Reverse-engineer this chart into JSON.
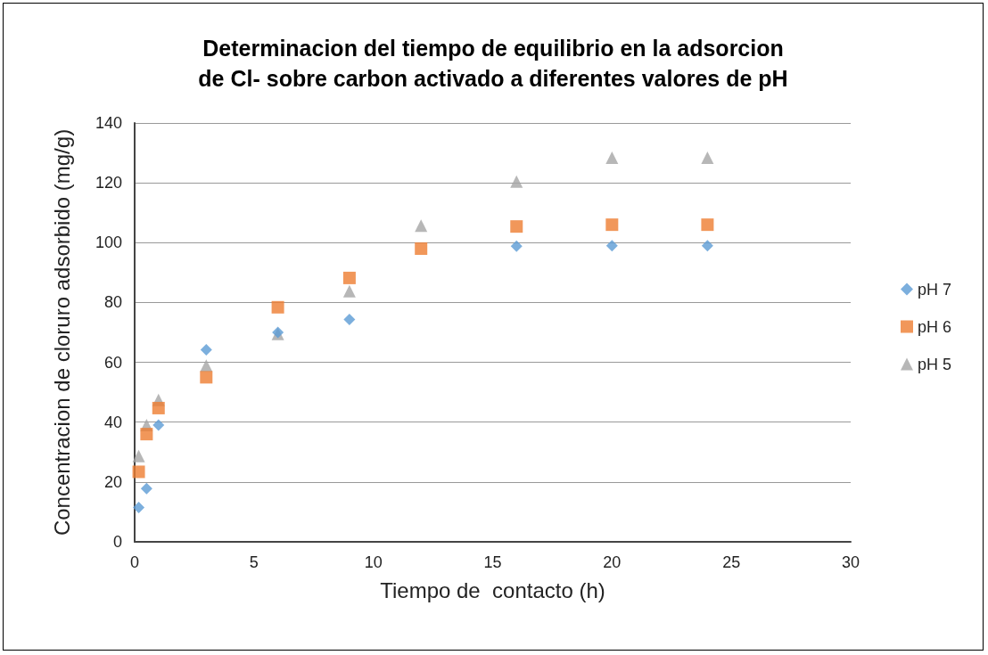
{
  "chart_data": {
    "type": "scatter",
    "title": "Determinacion del tiempo de equilibrio en la adsorcion\nde Cl- sobre carbon activado a diferentes valores de pH",
    "xlabel": "Tiempo de  contacto (h)",
    "ylabel": "Concentracion de cloruro adsorbido (mg/g)",
    "xlim": [
      0,
      30
    ],
    "xticks": [
      0,
      5,
      10,
      15,
      20,
      25,
      30
    ],
    "ylim": [
      0,
      140
    ],
    "yticks": [
      0,
      20,
      40,
      60,
      80,
      100,
      120,
      140
    ],
    "grid": "y",
    "legend": "right",
    "series": [
      {
        "name": "pH 7",
        "color": "#5b9bd5",
        "marker": "diamond",
        "x": [
          0.17,
          0.5,
          1,
          3,
          6,
          9,
          16,
          20,
          24
        ],
        "values": [
          11.5,
          17.8,
          39,
          64.2,
          70,
          74.3,
          98.8,
          99,
          99
        ]
      },
      {
        "name": "pH 6",
        "color": "#ed7d31",
        "marker": "square",
        "x": [
          0.17,
          0.5,
          1,
          3,
          6,
          9,
          12,
          16,
          20,
          24
        ],
        "values": [
          23.4,
          36,
          44.7,
          55,
          78.4,
          88.2,
          98,
          105.4,
          106,
          106
        ]
      },
      {
        "name": "pH 5",
        "color": "#a5a5a5",
        "marker": "triangle",
        "x": [
          0.17,
          0.5,
          1,
          3,
          6,
          9,
          12,
          16,
          20,
          24
        ],
        "values": [
          28.7,
          39,
          47.4,
          58.9,
          69.5,
          83.8,
          105.7,
          120.4,
          128.4,
          128.4
        ]
      }
    ]
  }
}
